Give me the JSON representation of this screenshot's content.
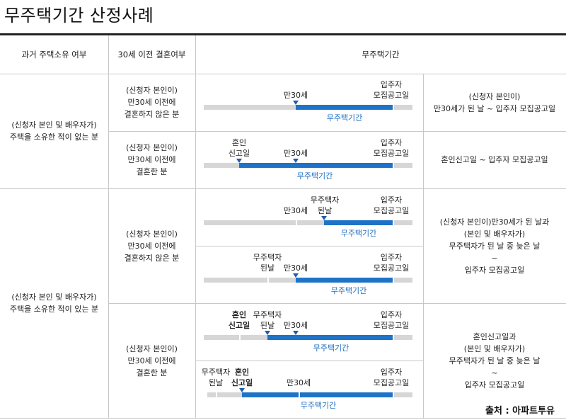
{
  "title": "무주택기간 산정사례",
  "headers": {
    "col1": "과거 주택소유 여부",
    "col2": "30세 이전 결혼여부",
    "col3": "무주택기간"
  },
  "rows": {
    "never_owned": "(신청자 본인 및 배우자가)\n주택을 소유한 적이 없는 분",
    "owned_before": "(신청자 본인 및 배우자가)\n주택을 소유한 적이 있는 분"
  },
  "cases": {
    "a": {
      "marriage": "(신청자 본인이)\n만30세 이전에\n결혼하지 않은 분",
      "result": "(신청자 본인이)\n만30세가 된 날 ~ 입주자 모집공고일"
    },
    "b": {
      "marriage": "(신청자 본인이)\n만30세 이전에\n결혼한 분",
      "result": "혼인신고일 ~ 입주자 모집공고일"
    },
    "c": {
      "marriage": "(신청자 본인이)\n만30세 이전에\n결혼하지 않은 분",
      "result": "(신청자 본인이)만30세가 된 날과\n(본인 및 배우자가)\n무주택자가 된 날 중 늦은 날\n~\n입주자 모집공고일"
    },
    "d": {
      "marriage": "(신청자 본인이)\n만30세 이전에\n결혼한 분",
      "result": "혼인신고일과\n(본인 및 배우자가)\n무주택자가 된 날 중 늦은 날\n~\n입주자 모집공고일"
    }
  },
  "timeline_labels": {
    "age30": "만30세",
    "announce": "입주자\n모집공고일",
    "marriage_report": "혼인\n신고일",
    "became_homeless": "무주택자\n된날",
    "period": "무주택기간"
  },
  "source": "출처 : 아파트투유"
}
